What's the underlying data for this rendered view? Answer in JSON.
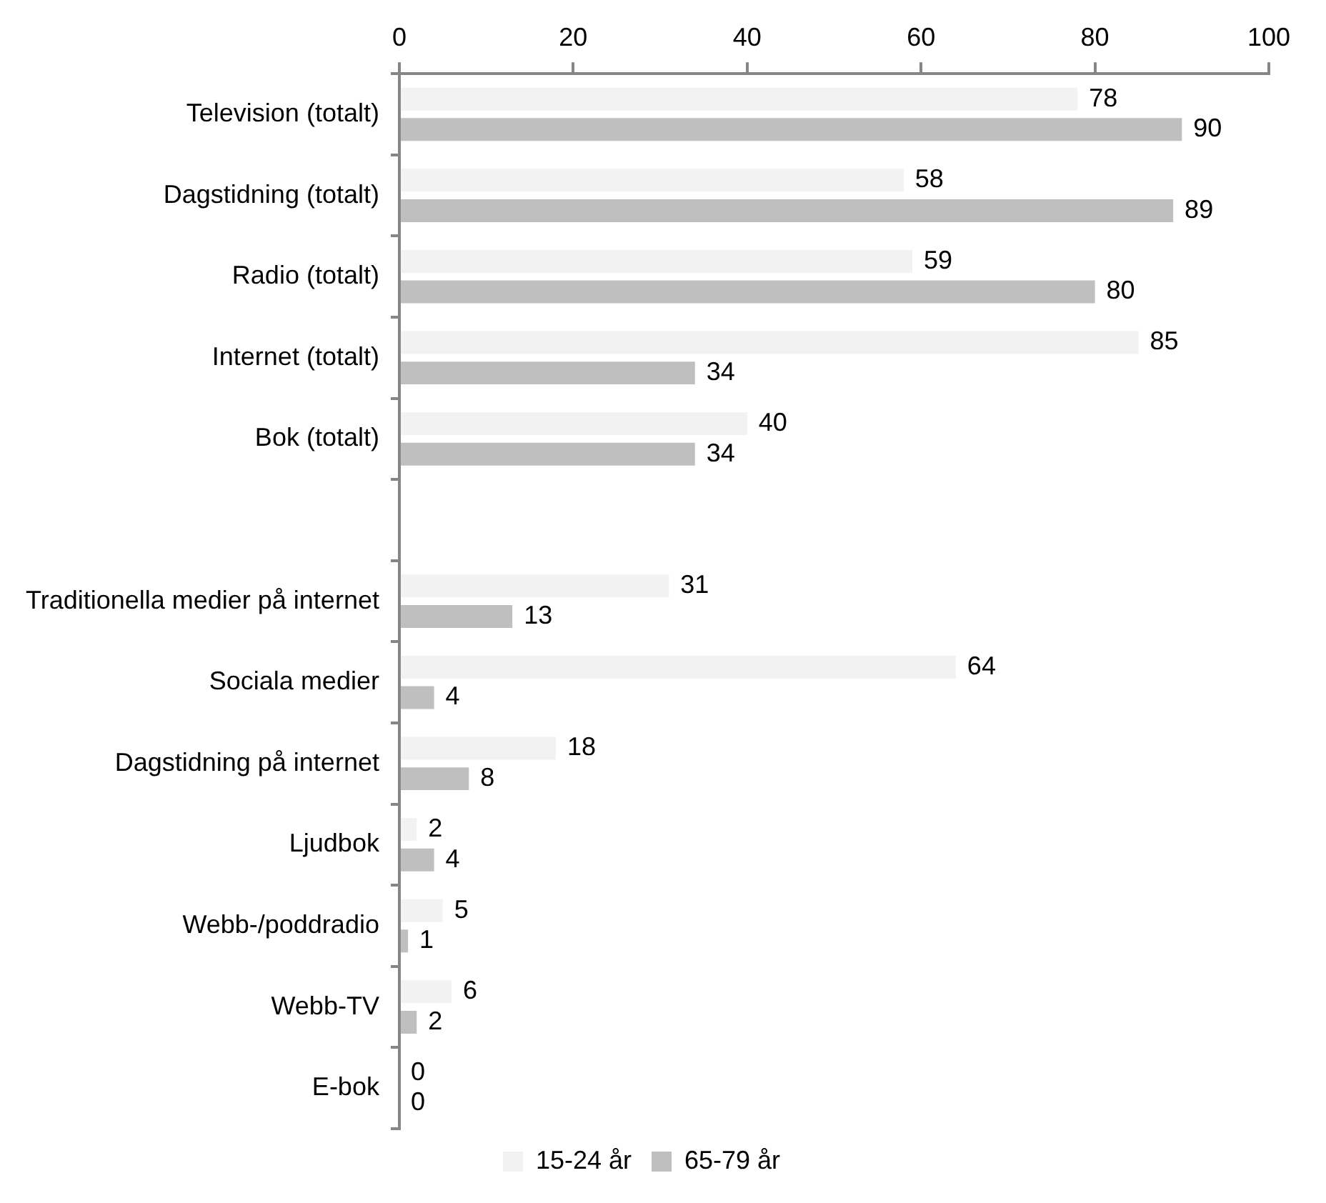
{
  "chart_data": {
    "type": "bar",
    "orientation": "horizontal",
    "categories": [
      "Television (totalt)",
      "Dagstidning (totalt)",
      "Radio (totalt)",
      "Internet (totalt)",
      "Bok (totalt)",
      null,
      "Traditionella medier på internet",
      "Sociala medier",
      "Dagstidning på internet",
      "Ljudbok",
      "Webb-/poddradio",
      "Webb-TV",
      "E-bok"
    ],
    "series": [
      {
        "name": "15-24 år",
        "color": "#f2f2f2",
        "values": [
          78,
          58,
          59,
          85,
          40,
          null,
          31,
          64,
          18,
          2,
          5,
          6,
          0
        ]
      },
      {
        "name": "65-79 år",
        "color": "#bfbfbf",
        "values": [
          90,
          89,
          80,
          34,
          34,
          null,
          13,
          4,
          8,
          4,
          1,
          2,
          0
        ]
      }
    ],
    "xlim": [
      0,
      100
    ],
    "xticks": [
      0,
      20,
      40,
      60,
      80,
      100
    ],
    "grid": false,
    "legend": "bottom",
    "data_labels": true
  }
}
